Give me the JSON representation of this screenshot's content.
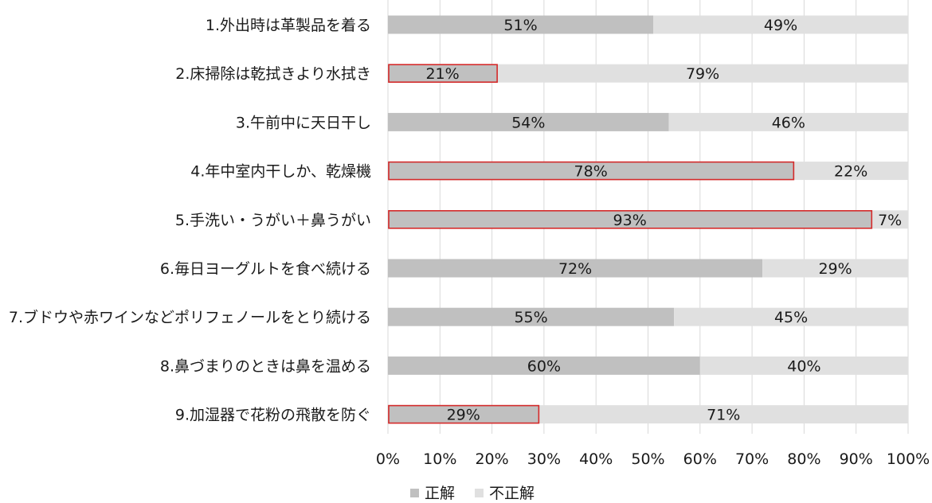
{
  "chart_data": {
    "type": "bar",
    "orientation": "horizontal",
    "stacked": true,
    "percent": true,
    "categories": [
      "1.外出時は革製品を着る",
      "2.床掃除は乾拭きより水拭き",
      "3.午前中に天日干し",
      "4.年中室内干しか、乾燥機",
      "5.手洗い・うがい＋鼻うがい",
      "6.毎日ヨーグルトを食べ続ける",
      "7.ブドウや赤ワインなどポリフェノールをとり続ける",
      "8.鼻づまりのときは鼻を温める",
      "9.加湿器で花粉の飛散を防ぐ"
    ],
    "series": [
      {
        "name": "正解",
        "color": "#c0c0c0",
        "values": [
          51,
          21,
          54,
          78,
          93,
          72,
          55,
          60,
          29
        ],
        "labels": [
          "51%",
          "21%",
          "54%",
          "78%",
          "93%",
          "72%",
          "55%",
          "60%",
          "29%"
        ]
      },
      {
        "name": "不正解",
        "color": "#e0e0e0",
        "values": [
          49,
          79,
          46,
          22,
          7,
          29,
          45,
          40,
          71
        ],
        "labels": [
          "49%",
          "79%",
          "46%",
          "22%",
          "7%",
          "29%",
          "45%",
          "40%",
          "71%"
        ]
      }
    ],
    "highlight_outline": [
      false,
      true,
      false,
      true,
      true,
      false,
      false,
      false,
      true
    ],
    "highlight_color": "#d42a2a",
    "xlim": [
      0,
      100
    ],
    "x_ticks": [
      "0%",
      "10%",
      "20%",
      "30%",
      "40%",
      "50%",
      "60%",
      "70%",
      "80%",
      "90%",
      "100%"
    ],
    "grid": true,
    "legend_position": "bottom",
    "title": "",
    "xlabel": "",
    "ylabel": ""
  }
}
